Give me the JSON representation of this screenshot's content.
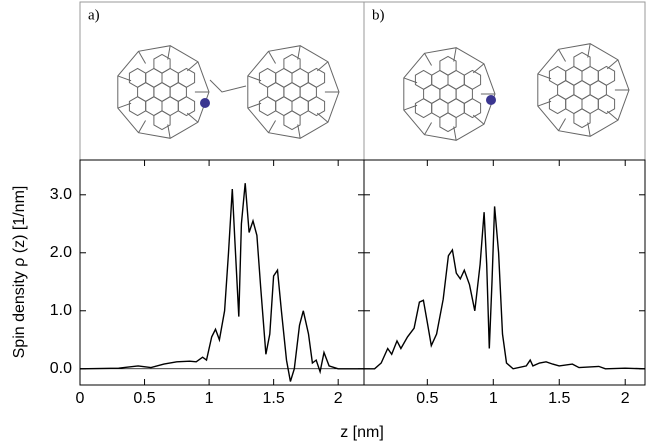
{
  "figure": {
    "xlabel": "z [nm]",
    "ylabel": "Spin density ρ (z) [1/nm]"
  },
  "chart_data": [
    {
      "type": "line",
      "label": "a)",
      "color": "#000000",
      "zero_line": true,
      "x": [
        0,
        0.3,
        0.45,
        0.55,
        0.65,
        0.75,
        0.85,
        0.9,
        0.95,
        0.98,
        1.02,
        1.05,
        1.08,
        1.12,
        1.15,
        1.18,
        1.2,
        1.23,
        1.25,
        1.28,
        1.31,
        1.34,
        1.37,
        1.4,
        1.44,
        1.47,
        1.5,
        1.53,
        1.56,
        1.6,
        1.63,
        1.66,
        1.7,
        1.73,
        1.77,
        1.8,
        1.83,
        1.86,
        1.89,
        1.93,
        2.0,
        2.2
      ],
      "values": [
        0,
        0.01,
        0.05,
        0.02,
        0.08,
        0.12,
        0.13,
        0.12,
        0.2,
        0.15,
        0.55,
        0.68,
        0.5,
        1.0,
        2.0,
        3.1,
        2.2,
        0.9,
        2.5,
        3.2,
        2.35,
        2.55,
        2.3,
        1.4,
        0.25,
        0.6,
        1.6,
        1.7,
        1.0,
        0.15,
        -0.22,
        0.0,
        0.75,
        1.0,
        0.6,
        0.1,
        0.15,
        -0.05,
        0.28,
        0.05,
        0.0,
        0.0
      ],
      "xlim": [
        0,
        2.2
      ],
      "xticks": [
        0,
        0.5,
        1,
        1.5,
        2
      ],
      "ylim": [
        -0.28,
        3.6
      ],
      "yticks": [
        {
          "value": 0,
          "label": "0.0"
        },
        {
          "value": 1,
          "label": "1.0"
        },
        {
          "value": 2,
          "label": "2.0"
        },
        {
          "value": 3,
          "label": "3.0"
        }
      ]
    },
    {
      "type": "line",
      "label": "b)",
      "color": "#000000",
      "zero_line": false,
      "x": [
        0.02,
        0.1,
        0.15,
        0.2,
        0.23,
        0.27,
        0.3,
        0.35,
        0.4,
        0.44,
        0.47,
        0.5,
        0.53,
        0.57,
        0.62,
        0.66,
        0.69,
        0.72,
        0.75,
        0.78,
        0.82,
        0.86,
        0.9,
        0.93,
        0.95,
        0.97,
        0.99,
        1.01,
        1.04,
        1.07,
        1.1,
        1.15,
        1.25,
        1.28,
        1.3,
        1.35,
        1.4,
        1.45,
        1.5,
        1.6,
        1.65,
        1.8,
        1.85,
        2.0,
        2.15
      ],
      "values": [
        0,
        0,
        0.1,
        0.35,
        0.25,
        0.48,
        0.35,
        0.55,
        0.7,
        1.15,
        1.18,
        0.8,
        0.4,
        0.6,
        1.2,
        1.95,
        2.05,
        1.65,
        1.55,
        1.7,
        1.45,
        1.0,
        1.8,
        2.7,
        1.8,
        0.35,
        1.5,
        2.8,
        2.0,
        0.6,
        0.1,
        0.0,
        0.05,
        0.15,
        0.05,
        0.1,
        0.12,
        0.08,
        0.05,
        0.08,
        0.02,
        0.04,
        0.0,
        0.01,
        0.0
      ],
      "xlim": [
        0.02,
        2.15
      ],
      "xticks": [
        0.5,
        1,
        1.5,
        2
      ],
      "ylim": [
        -0.28,
        3.6
      ],
      "yticks": [
        0,
        1,
        2,
        3
      ]
    }
  ]
}
